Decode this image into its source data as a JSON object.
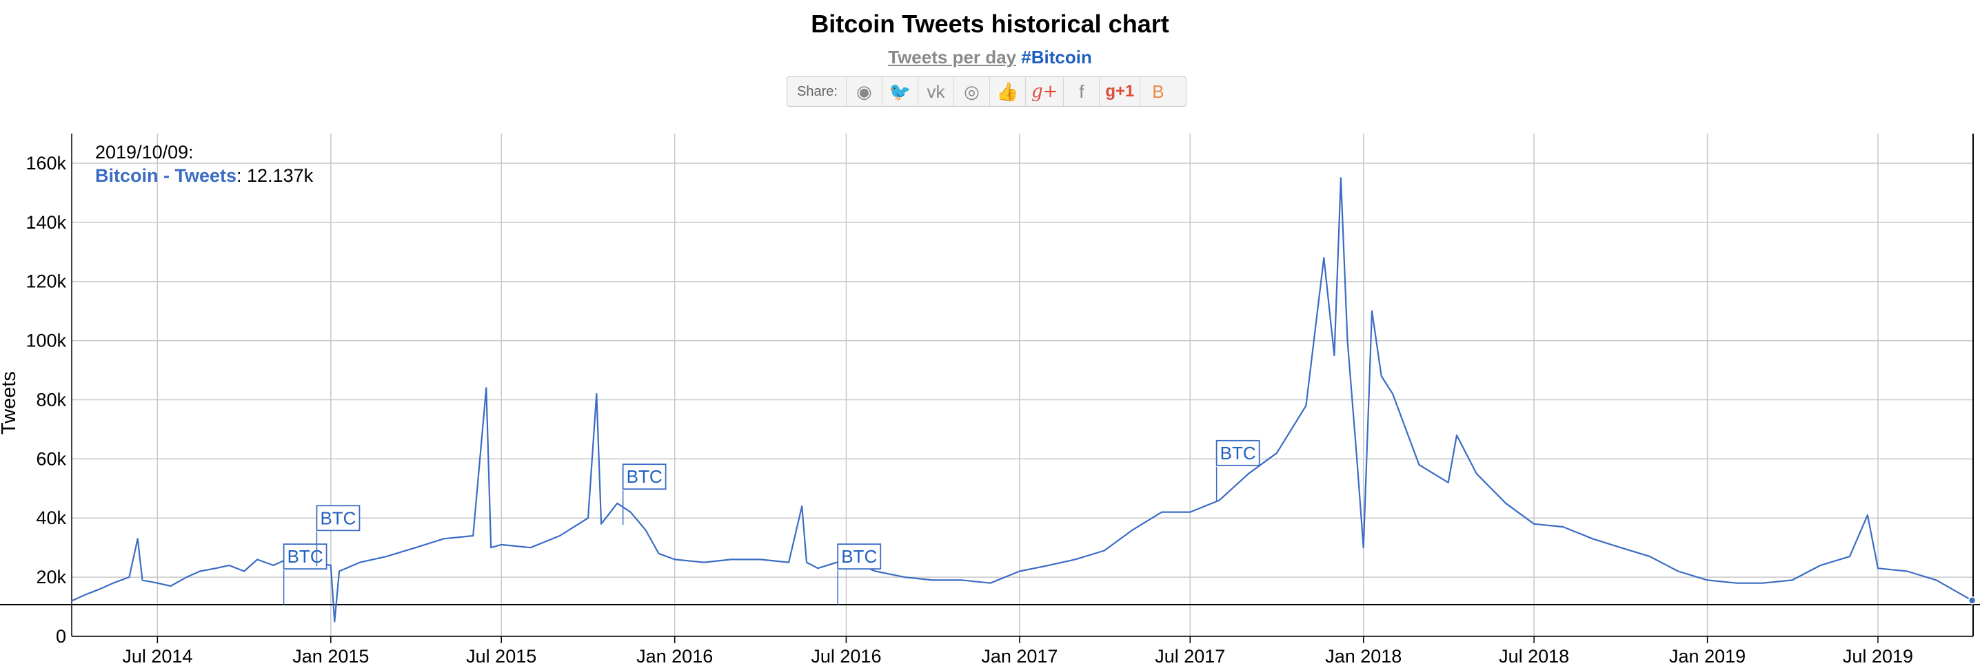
{
  "page": {
    "title": "Bitcoin Tweets historical chart",
    "subtitle_link": "Tweets per day",
    "subtitle_tag": "#Bitcoin",
    "share": {
      "label": "Share:",
      "buttons": [
        {
          "name": "reddit-share-button",
          "icon": "reddit-icon",
          "glyph": "◉"
        },
        {
          "name": "twitter-share-button",
          "icon": "twitter-icon",
          "glyph": "🐦"
        },
        {
          "name": "vk-share-button",
          "icon": "vk-icon",
          "glyph": "vk"
        },
        {
          "name": "weibo-share-button",
          "icon": "weibo-icon",
          "glyph": "◎"
        },
        {
          "name": "like-share-button",
          "icon": "thumbs-up-icon",
          "glyph": "👍"
        },
        {
          "name": "google-plus-share-button",
          "icon": "google-plus-icon",
          "glyph": "g+"
        },
        {
          "name": "facebook-share-button",
          "icon": "facebook-icon",
          "glyph": "f"
        },
        {
          "name": "google-plus-one-button",
          "icon": "google-plus-one-icon",
          "glyph": "g+1"
        },
        {
          "name": "blogger-share-button",
          "icon": "blogger-icon",
          "glyph": "B"
        }
      ]
    },
    "tooltip": {
      "date": "2019/10/09:",
      "series_label": "Bitcoin - Tweets",
      "value": ": 12.137k"
    }
  },
  "chart_data": {
    "type": "line",
    "title": "Bitcoin Tweets historical chart",
    "subtitle": "Tweets per day #Bitcoin",
    "ylabel": "Tweets",
    "xlabel": "",
    "ylim": [
      0,
      170000
    ],
    "yticks": [
      0,
      20000,
      40000,
      60000,
      80000,
      100000,
      120000,
      140000,
      160000
    ],
    "ytick_labels": [
      "0",
      "20k",
      "40k",
      "60k",
      "80k",
      "100k",
      "120k",
      "140k",
      "160k"
    ],
    "xlim": [
      "2014-04-01",
      "2019-10-10"
    ],
    "xticks": [
      "2014-07-01",
      "2015-01-01",
      "2015-07-01",
      "2016-01-01",
      "2016-07-01",
      "2017-01-01",
      "2017-07-01",
      "2018-01-01",
      "2018-07-01",
      "2019-01-01",
      "2019-07-01"
    ],
    "xtick_labels": [
      "Jul 2014",
      "Jan 2015",
      "Jul 2015",
      "Jan 2016",
      "Jul 2016",
      "Jan 2017",
      "Jul 2017",
      "Jan 2018",
      "Jul 2018",
      "Jan 2019",
      "Jul 2019"
    ],
    "grid": true,
    "color": "#3a6cc4",
    "series": [
      {
        "name": "Bitcoin - Tweets",
        "points": [
          [
            "2014-04-01",
            12000
          ],
          [
            "2014-04-15",
            14000
          ],
          [
            "2014-05-01",
            16000
          ],
          [
            "2014-05-15",
            18000
          ],
          [
            "2014-06-01",
            20000
          ],
          [
            "2014-06-10",
            33000
          ],
          [
            "2014-06-15",
            19000
          ],
          [
            "2014-07-01",
            18000
          ],
          [
            "2014-07-15",
            17000
          ],
          [
            "2014-08-01",
            20000
          ],
          [
            "2014-08-15",
            22000
          ],
          [
            "2014-09-01",
            23000
          ],
          [
            "2014-09-15",
            24000
          ],
          [
            "2014-10-01",
            22000
          ],
          [
            "2014-10-15",
            26000
          ],
          [
            "2014-11-01",
            24000
          ],
          [
            "2014-11-15",
            26000
          ],
          [
            "2014-12-01",
            30000
          ],
          [
            "2014-12-15",
            25000
          ],
          [
            "2015-01-01",
            24000
          ],
          [
            "2015-01-05",
            5000
          ],
          [
            "2015-01-10",
            22000
          ],
          [
            "2015-02-01",
            25000
          ],
          [
            "2015-03-01",
            27000
          ],
          [
            "2015-04-01",
            30000
          ],
          [
            "2015-05-01",
            33000
          ],
          [
            "2015-06-01",
            34000
          ],
          [
            "2015-06-15",
            84000
          ],
          [
            "2015-06-20",
            30000
          ],
          [
            "2015-07-01",
            31000
          ],
          [
            "2015-08-01",
            30000
          ],
          [
            "2015-09-01",
            34000
          ],
          [
            "2015-10-01",
            40000
          ],
          [
            "2015-10-10",
            82000
          ],
          [
            "2015-10-15",
            38000
          ],
          [
            "2015-11-01",
            45000
          ],
          [
            "2015-11-15",
            42000
          ],
          [
            "2015-12-01",
            36000
          ],
          [
            "2015-12-15",
            28000
          ],
          [
            "2016-01-01",
            26000
          ],
          [
            "2016-02-01",
            25000
          ],
          [
            "2016-03-01",
            26000
          ],
          [
            "2016-04-01",
            26000
          ],
          [
            "2016-05-01",
            25000
          ],
          [
            "2016-05-15",
            44000
          ],
          [
            "2016-05-20",
            25000
          ],
          [
            "2016-06-01",
            23000
          ],
          [
            "2016-07-01",
            26000
          ],
          [
            "2016-08-01",
            22000
          ],
          [
            "2016-09-01",
            20000
          ],
          [
            "2016-10-01",
            19000
          ],
          [
            "2016-11-01",
            19000
          ],
          [
            "2016-12-01",
            18000
          ],
          [
            "2017-01-01",
            22000
          ],
          [
            "2017-02-01",
            24000
          ],
          [
            "2017-03-01",
            26000
          ],
          [
            "2017-04-01",
            29000
          ],
          [
            "2017-05-01",
            36000
          ],
          [
            "2017-06-01",
            42000
          ],
          [
            "2017-07-01",
            42000
          ],
          [
            "2017-08-01",
            46000
          ],
          [
            "2017-09-01",
            55000
          ],
          [
            "2017-10-01",
            62000
          ],
          [
            "2017-11-01",
            78000
          ],
          [
            "2017-11-20",
            128000
          ],
          [
            "2017-12-01",
            95000
          ],
          [
            "2017-12-08",
            155000
          ],
          [
            "2017-12-15",
            100000
          ],
          [
            "2017-12-25",
            60000
          ],
          [
            "2018-01-01",
            30000
          ],
          [
            "2018-01-10",
            110000
          ],
          [
            "2018-01-20",
            88000
          ],
          [
            "2018-02-01",
            82000
          ],
          [
            "2018-03-01",
            58000
          ],
          [
            "2018-04-01",
            52000
          ],
          [
            "2018-04-10",
            68000
          ],
          [
            "2018-05-01",
            55000
          ],
          [
            "2018-06-01",
            45000
          ],
          [
            "2018-07-01",
            38000
          ],
          [
            "2018-08-01",
            37000
          ],
          [
            "2018-09-01",
            33000
          ],
          [
            "2018-10-01",
            30000
          ],
          [
            "2018-11-01",
            27000
          ],
          [
            "2018-12-01",
            22000
          ],
          [
            "2019-01-01",
            19000
          ],
          [
            "2019-02-01",
            18000
          ],
          [
            "2019-03-01",
            18000
          ],
          [
            "2019-04-01",
            19000
          ],
          [
            "2019-05-01",
            24000
          ],
          [
            "2019-06-01",
            27000
          ],
          [
            "2019-06-20",
            41000
          ],
          [
            "2019-07-01",
            23000
          ],
          [
            "2019-08-01",
            22000
          ],
          [
            "2019-09-01",
            19000
          ],
          [
            "2019-10-09",
            12137
          ]
        ]
      }
    ],
    "annotations": [
      {
        "label": "BTC",
        "date": "2014-11-15",
        "value": 20000
      },
      {
        "label": "BTC",
        "date": "2014-12-20",
        "value": 33000
      },
      {
        "label": "BTC",
        "date": "2015-11-10",
        "value": 47000
      },
      {
        "label": "BTC",
        "date": "2016-06-25",
        "value": 20000
      },
      {
        "label": "BTC",
        "date": "2017-08-01",
        "value": 55000
      }
    ]
  }
}
